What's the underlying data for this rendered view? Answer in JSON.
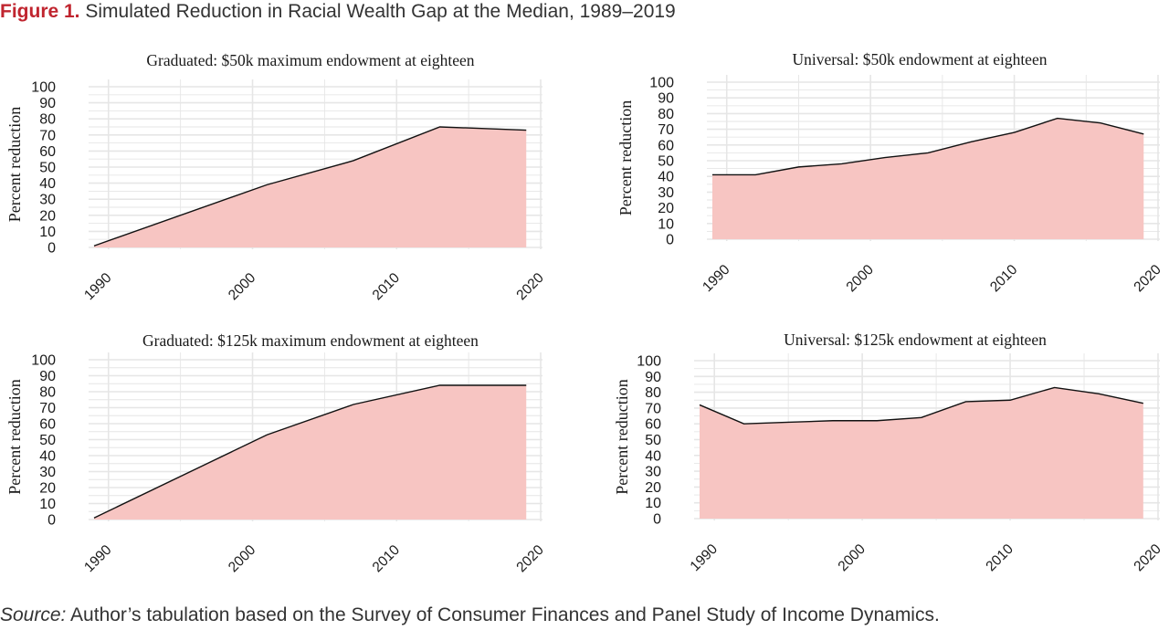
{
  "figure": {
    "label": "Figure 1.",
    "title": "Simulated Reduction in Racial Wealth Gap at the Median, 1989–2019"
  },
  "source": {
    "label": "Source:",
    "text": " Author’s tabulation based on the Survey of Consumer Finances and Panel Study of Income Dynamics."
  },
  "colors": {
    "fill": "#f7c5c2",
    "line": "#111111",
    "grid": "#e6e6e6"
  },
  "chart_data": [
    {
      "type": "area",
      "title": "Graduated: $50k maximum endowment at eighteen",
      "ylabel": "Percent reduction",
      "xlabel": "",
      "xlim": [
        1989,
        2020
      ],
      "ylim": [
        0,
        100
      ],
      "xticks": [
        1990,
        2000,
        2010,
        2020
      ],
      "yticks": [
        0,
        10,
        20,
        30,
        40,
        50,
        60,
        70,
        80,
        90,
        100
      ],
      "grid": true,
      "x": [
        1989,
        2001,
        2007,
        2013,
        2019
      ],
      "y": [
        1,
        39,
        54,
        75,
        73
      ]
    },
    {
      "type": "area",
      "title": "Universal: $50k endowment at eighteen",
      "ylabel": "Percent reduction",
      "xlabel": "",
      "xlim": [
        1989,
        2020
      ],
      "ylim": [
        0,
        100
      ],
      "xticks": [
        1990,
        2000,
        2010,
        2020
      ],
      "yticks": [
        0,
        10,
        20,
        30,
        40,
        50,
        60,
        70,
        80,
        90,
        100
      ],
      "grid": true,
      "x": [
        1989,
        1992,
        1995,
        1998,
        2001,
        2004,
        2007,
        2010,
        2013,
        2016,
        2019
      ],
      "y": [
        41,
        41,
        46,
        48,
        52,
        55,
        62,
        68,
        77,
        74,
        67
      ]
    },
    {
      "type": "area",
      "title": "Graduated: $125k maximum endowment at eighteen",
      "ylabel": "Percent reduction",
      "xlabel": "",
      "xlim": [
        1989,
        2020
      ],
      "ylim": [
        0,
        100
      ],
      "xticks": [
        1990,
        2000,
        2010,
        2020
      ],
      "yticks": [
        0,
        10,
        20,
        30,
        40,
        50,
        60,
        70,
        80,
        90,
        100
      ],
      "grid": true,
      "x": [
        1989,
        2001,
        2007,
        2013,
        2019
      ],
      "y": [
        1,
        53,
        72,
        84,
        84
      ]
    },
    {
      "type": "area",
      "title": "Universal: $125k endowment at eighteen",
      "ylabel": "Percent reduction",
      "xlabel": "",
      "xlim": [
        1989,
        2020
      ],
      "ylim": [
        0,
        100
      ],
      "xticks": [
        1990,
        2000,
        2010,
        2020
      ],
      "yticks": [
        0,
        10,
        20,
        30,
        40,
        50,
        60,
        70,
        80,
        90,
        100
      ],
      "grid": true,
      "x": [
        1989,
        1992,
        1995,
        1998,
        2001,
        2004,
        2007,
        2010,
        2013,
        2016,
        2019
      ],
      "y": [
        72,
        60,
        61,
        62,
        62,
        64,
        74,
        75,
        83,
        79,
        73
      ]
    }
  ]
}
